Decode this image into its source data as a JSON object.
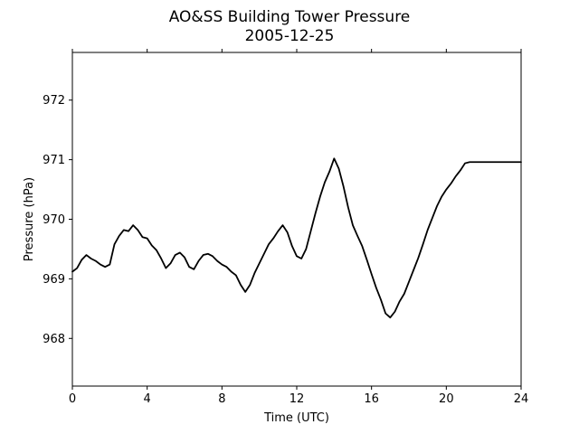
{
  "chart_data": {
    "type": "line",
    "title": "AO&SS Building Tower Pressure",
    "subtitle": "2005-12-25",
    "xlabel": "Time (UTC)",
    "ylabel": "Pressure (hPa)",
    "xlim": [
      0,
      24
    ],
    "ylim": [
      967.2,
      972.8
    ],
    "xticks": [
      0,
      4,
      8,
      12,
      16,
      20,
      24
    ],
    "yticks": [
      968,
      969,
      970,
      971,
      972
    ],
    "grid": false,
    "legend": "none",
    "line_color": "#000000",
    "series": [
      {
        "x": [
          0.0,
          0.25,
          0.5,
          0.75,
          1.0,
          1.25,
          1.5,
          1.75,
          2.0,
          2.25,
          2.5,
          2.75,
          3.0,
          3.25,
          3.5,
          3.75,
          4.0,
          4.25,
          4.5,
          4.75,
          5.0,
          5.25,
          5.5,
          5.75,
          6.0,
          6.25,
          6.5,
          6.75,
          7.0,
          7.25,
          7.5,
          7.75,
          8.0,
          8.25,
          8.5,
          8.75,
          9.0,
          9.25,
          9.5,
          9.75,
          10.0,
          10.25,
          10.5,
          10.75,
          11.0,
          11.25,
          11.5,
          11.75,
          12.0,
          12.25,
          12.5,
          12.75,
          13.0,
          13.25,
          13.5,
          13.75,
          14.0,
          14.25,
          14.5,
          14.75,
          15.0,
          15.25,
          15.5,
          15.75,
          16.0,
          16.25,
          16.5,
          16.75,
          17.0,
          17.25,
          17.5,
          17.75,
          18.0,
          18.25,
          18.5,
          18.75,
          19.0,
          19.25,
          19.5,
          19.75,
          20.0,
          20.25,
          20.5,
          20.75,
          21.0,
          21.25,
          21.5,
          21.75,
          22.0,
          22.25,
          22.5,
          22.75,
          23.0,
          23.25,
          23.5,
          23.75,
          24.0
        ],
        "values": [
          969.12,
          969.18,
          969.32,
          969.4,
          969.34,
          969.3,
          969.24,
          969.2,
          969.24,
          969.58,
          969.72,
          969.82,
          969.8,
          969.9,
          969.82,
          969.7,
          969.68,
          969.56,
          969.48,
          969.34,
          969.18,
          969.26,
          969.4,
          969.44,
          969.36,
          969.2,
          969.16,
          969.3,
          969.4,
          969.42,
          969.38,
          969.3,
          969.24,
          969.2,
          969.12,
          969.06,
          968.9,
          968.78,
          968.9,
          969.1,
          969.26,
          969.42,
          969.58,
          969.68,
          969.8,
          969.9,
          969.78,
          969.55,
          969.38,
          969.34,
          969.5,
          969.8,
          970.1,
          970.38,
          970.62,
          970.8,
          971.02,
          970.85,
          970.55,
          970.2,
          969.9,
          969.72,
          969.55,
          969.32,
          969.08,
          968.85,
          968.65,
          968.42,
          968.35,
          968.45,
          968.62,
          968.75,
          968.95,
          969.15,
          969.35,
          969.58,
          969.82,
          970.02,
          970.22,
          970.38,
          970.5,
          970.6,
          970.72,
          970.82,
          970.94,
          970.96,
          970.96,
          970.96,
          970.96,
          970.96,
          970.96,
          970.96,
          970.96,
          970.96,
          970.96,
          970.96,
          970.96
        ]
      }
    ]
  }
}
